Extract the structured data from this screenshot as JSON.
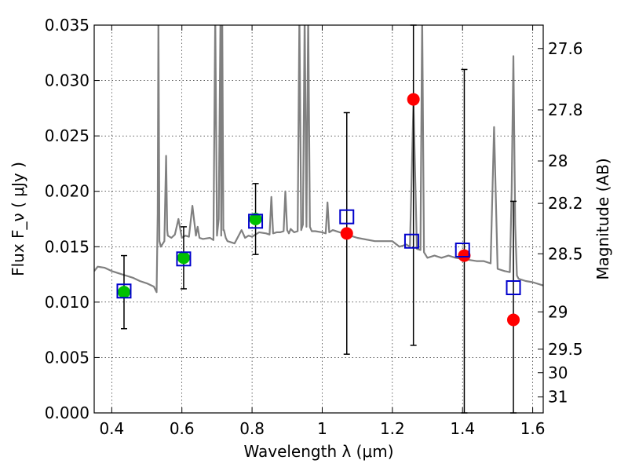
{
  "chart_data": {
    "type": "scatter",
    "xlabel": "Wavelength  λ (μm)",
    "ylabel": "Flux  F_ν  ( μJy )",
    "y2label": "Magnitude (AB)",
    "xlim": [
      0.35,
      1.63
    ],
    "ylim": [
      0.0,
      0.035
    ],
    "grid": true,
    "x_ticks": [
      0.4,
      0.6,
      0.8,
      1.0,
      1.2,
      1.4,
      1.6
    ],
    "x_tick_labels": [
      "0.4",
      "0.6",
      "0.8",
      "1",
      "1.2",
      "1.4",
      "1.6"
    ],
    "y_ticks": [
      0.0,
      0.005,
      0.01,
      0.015,
      0.02,
      0.025,
      0.03,
      0.035
    ],
    "y_tick_labels": [
      "0.000",
      "0.005",
      "0.010",
      "0.015",
      "0.020",
      "0.025",
      "0.030",
      "0.035"
    ],
    "right_ticks": [
      {
        "label": "27.6",
        "flux": 0.03289
      },
      {
        "label": "27.8",
        "flux": 0.02735
      },
      {
        "label": "28",
        "flux": 0.02274
      },
      {
        "label": "28.2",
        "flux": 0.01891
      },
      {
        "label": "28.5",
        "flux": 0.01436
      },
      {
        "label": "29",
        "flux": 0.00912
      },
      {
        "label": "29.5",
        "flux": 0.00575
      },
      {
        "label": "30",
        "flux": 0.00363
      },
      {
        "label": "31",
        "flux": 0.00144
      }
    ],
    "series": [
      {
        "role": "model spectrum",
        "color": "#808080",
        "style": "line",
        "x": [
          0.35,
          0.36,
          0.38,
          0.4,
          0.42,
          0.44,
          0.46,
          0.48,
          0.5,
          0.52,
          0.528,
          0.531,
          0.533,
          0.536,
          0.54,
          0.55,
          0.555,
          0.558,
          0.56,
          0.57,
          0.58,
          0.59,
          0.6,
          0.61,
          0.62,
          0.63,
          0.64,
          0.645,
          0.65,
          0.66,
          0.68,
          0.69,
          0.695,
          0.7,
          0.705,
          0.71,
          0.712,
          0.715,
          0.718,
          0.72,
          0.725,
          0.73,
          0.75,
          0.77,
          0.78,
          0.79,
          0.8,
          0.82,
          0.84,
          0.85,
          0.855,
          0.86,
          0.87,
          0.88,
          0.89,
          0.895,
          0.9,
          0.905,
          0.91,
          0.92,
          0.93,
          0.935,
          0.94,
          0.945,
          0.95,
          0.955,
          0.96,
          0.965,
          0.97,
          0.98,
          1.0,
          1.01,
          1.015,
          1.02,
          1.03,
          1.05,
          1.08,
          1.1,
          1.15,
          1.18,
          1.2,
          1.22,
          1.24,
          1.25,
          1.26,
          1.27,
          1.28,
          1.285,
          1.29,
          1.3,
          1.32,
          1.34,
          1.36,
          1.38,
          1.4,
          1.42,
          1.44,
          1.46,
          1.48,
          1.49,
          1.5,
          1.52,
          1.535,
          1.54,
          1.545,
          1.55,
          1.555,
          1.56,
          1.58,
          1.6,
          1.63
        ],
        "y": [
          0.0128,
          0.0132,
          0.0131,
          0.0128,
          0.0126,
          0.0124,
          0.0122,
          0.0119,
          0.0117,
          0.0114,
          0.0109,
          0.018,
          0.036,
          0.0155,
          0.015,
          0.0155,
          0.0232,
          0.0165,
          0.016,
          0.0158,
          0.0161,
          0.0175,
          0.0158,
          0.016,
          0.0159,
          0.0187,
          0.016,
          0.0168,
          0.0158,
          0.0157,
          0.0158,
          0.0156,
          0.036,
          0.016,
          0.0175,
          0.036,
          0.016,
          0.036,
          0.0165,
          0.0165,
          0.0158,
          0.0155,
          0.0153,
          0.0165,
          0.0158,
          0.016,
          0.0159,
          0.0163,
          0.0162,
          0.0161,
          0.0195,
          0.0162,
          0.0163,
          0.0163,
          0.0164,
          0.02,
          0.0165,
          0.0162,
          0.0166,
          0.0163,
          0.0164,
          0.036,
          0.0165,
          0.017,
          0.036,
          0.0168,
          0.036,
          0.0168,
          0.0164,
          0.0164,
          0.0163,
          0.0162,
          0.019,
          0.0163,
          0.0165,
          0.0163,
          0.016,
          0.0158,
          0.0155,
          0.0155,
          0.0155,
          0.015,
          0.0152,
          0.015,
          0.028,
          0.0148,
          0.0147,
          0.036,
          0.0145,
          0.014,
          0.0142,
          0.014,
          0.0142,
          0.014,
          0.0139,
          0.0138,
          0.0137,
          0.0137,
          0.0135,
          0.0258,
          0.013,
          0.0128,
          0.0127,
          0.02,
          0.0322,
          0.017,
          0.0124,
          0.0121,
          0.0119,
          0.0118,
          0.0115
        ]
      },
      {
        "role": "observed (green)",
        "color": "#00c000",
        "marker": "circle",
        "x": [
          0.435,
          0.605,
          0.81
        ],
        "y": [
          0.0109,
          0.014,
          0.0175
        ],
        "yerr": [
          0.0033,
          0.0028,
          0.0032
        ]
      },
      {
        "role": "observed (red)",
        "color": "#ff0000",
        "marker": "circle",
        "x": [
          1.07,
          1.26,
          1.405,
          1.545
        ],
        "y": [
          0.0162,
          0.0283,
          0.0142,
          0.0084
        ],
        "yerr_low": [
          0.0109,
          0.0222,
          0.0142,
          0.0084
        ],
        "yerr_high": [
          0.0109,
          0.0222,
          0.0168,
          0.0107
        ]
      },
      {
        "role": "model photometry",
        "color": "#0000cc",
        "marker": "open-square",
        "x": [
          0.435,
          0.605,
          0.81,
          1.07,
          1.255,
          1.4,
          1.545
        ],
        "y": [
          0.011,
          0.0139,
          0.0173,
          0.0177,
          0.0155,
          0.0147,
          0.0113
        ]
      }
    ]
  }
}
